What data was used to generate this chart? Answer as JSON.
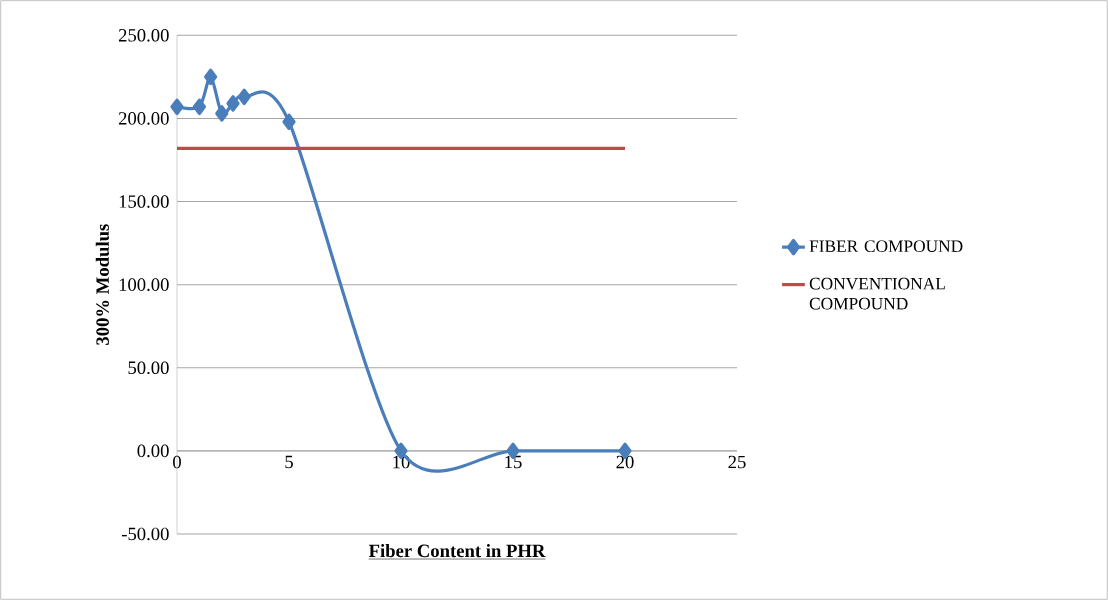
{
  "chart_data": {
    "type": "line",
    "xlabel": "Fiber Content in PHR",
    "ylabel": "300% Modulus",
    "xlim": [
      0,
      25
    ],
    "ylim": [
      -50,
      250
    ],
    "xticks": [
      0,
      5,
      10,
      15,
      20,
      25
    ],
    "yticks": [
      {
        "value": -50,
        "label": "-50.00"
      },
      {
        "value": 0,
        "label": "0.00"
      },
      {
        "value": 50,
        "label": "50.00"
      },
      {
        "value": 100,
        "label": "100.00"
      },
      {
        "value": 150,
        "label": "150.00"
      },
      {
        "value": 200,
        "label": "200.00"
      },
      {
        "value": 250,
        "label": "250.00"
      }
    ],
    "grid": "y",
    "legend": "right",
    "series": [
      {
        "name": "FIBER COMPOUND",
        "color": "#4a7ebb",
        "marker": "diamond",
        "x": [
          0,
          1,
          1.5,
          2,
          2.5,
          3,
          5,
          10,
          15,
          20
        ],
        "values": [
          207,
          207,
          225,
          203,
          209,
          213,
          198,
          0,
          0,
          0
        ]
      },
      {
        "name": "CONVENTIONAL COMPOUND",
        "color": "#be4b48",
        "marker": "none",
        "x": [
          0,
          20
        ],
        "values": [
          182,
          182
        ]
      }
    ]
  }
}
